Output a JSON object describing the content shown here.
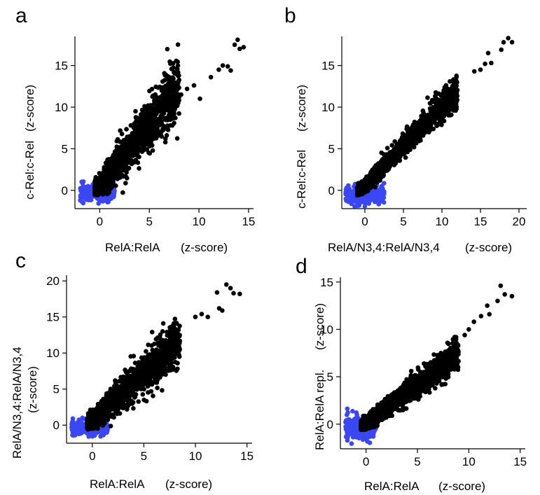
{
  "colors": {
    "background": "#ffffff",
    "high_points": "#000000",
    "low_points": "#3a47f5",
    "axis": "#000000"
  },
  "panels": [
    {
      "letter": "a",
      "xlabel": "RelA:RelA",
      "xunit": "(z-score)",
      "ylabel": "c-Rel:c-Rel",
      "yunit": "(z-score)"
    },
    {
      "letter": "b",
      "xlabel": "RelA/N3,4:RelA/N3,4",
      "xunit": "(z-score)",
      "ylabel": "c-Rel:c-Rel",
      "yunit": "(z-score)"
    },
    {
      "letter": "c",
      "xlabel": "RelA:RelA",
      "xunit": "(z-score)",
      "ylabel": "RelA/N3,4:RelA/N3,4",
      "yunit": "(z-score)"
    },
    {
      "letter": "d",
      "xlabel": "RelA:RelA",
      "xunit": "(z-score)",
      "ylabel": "RelA:RelA repl.",
      "yunit": "(z-score)"
    }
  ],
  "chart_data": [
    {
      "panel": "a",
      "type": "scatter",
      "xlabel": "RelA:RelA (z-score)",
      "ylabel": "c-Rel:c-Rel (z-score)",
      "xlim": [
        -2.5,
        15.5
      ],
      "ylim": [
        -2.2,
        18.5
      ],
      "xticks": [
        0,
        5,
        10,
        15
      ],
      "yticks": [
        0,
        5,
        10,
        15
      ],
      "grid": false,
      "series": [
        {
          "color": "#3a47f5",
          "cloud": {
            "x_range": [
              -2,
              1.5
            ],
            "center_y": -0.3,
            "y_spread": 0.9
          }
        },
        {
          "color": "#000000",
          "cloud": {
            "x_range": [
              -0.5,
              8
            ],
            "slope": 1.5,
            "intercept": 0.5,
            "spread": 2.0
          },
          "outliers": [
            [
              8.2,
              11.5
            ],
            [
              8.8,
              12.2
            ],
            [
              9.5,
              12.6
            ],
            [
              10.1,
              11.0
            ],
            [
              12.0,
              14.5
            ],
            [
              12.4,
              15.0
            ],
            [
              12.9,
              14.9
            ],
            [
              13.2,
              14.4
            ],
            [
              13.6,
              17.5
            ],
            [
              14.1,
              17.0
            ],
            [
              13.9,
              18.1
            ],
            [
              14.5,
              17.2
            ],
            [
              11.2,
              13.6
            ]
          ]
        }
      ]
    },
    {
      "panel": "b",
      "type": "scatter",
      "xlabel": "RelA/N3,4:RelA/N3,4 (z-score)",
      "ylabel": "c-Rel:c-Rel (z-score)",
      "xlim": [
        -3,
        21
      ],
      "ylim": [
        -2.2,
        18.5
      ],
      "xticks": [
        0,
        5,
        10,
        15,
        20
      ],
      "yticks": [
        0,
        5,
        10,
        15
      ],
      "grid": false,
      "series": [
        {
          "color": "#3a47f5",
          "cloud": {
            "x_range": [
              -2.5,
              2.5
            ],
            "center_y": -0.6,
            "y_spread": 0.9
          }
        },
        {
          "color": "#000000",
          "cloud": {
            "x_range": [
              -1,
              12
            ],
            "slope": 0.95,
            "intercept": 0.6,
            "spread": 1.0
          },
          "outliers": [
            [
              15.0,
              14.5
            ],
            [
              15.6,
              15.2
            ],
            [
              16.0,
              16.5
            ],
            [
              16.4,
              15.3
            ],
            [
              18.0,
              17.8
            ],
            [
              18.6,
              18.3
            ],
            [
              19.1,
              17.8
            ],
            [
              17.7,
              16.9
            ],
            [
              14.2,
              14.3
            ]
          ]
        }
      ]
    },
    {
      "panel": "c",
      "type": "scatter",
      "xlabel": "RelA:RelA (z-score)",
      "ylabel": "RelA/N3,4:RelA/N3,4 (z-score)",
      "xlim": [
        -2.5,
        15.5
      ],
      "ylim": [
        -2.5,
        20.8
      ],
      "xticks": [
        0,
        5,
        10,
        15
      ],
      "yticks": [
        0,
        5,
        10,
        15,
        20
      ],
      "grid": false,
      "series": [
        {
          "color": "#3a47f5",
          "cloud": {
            "x_range": [
              -2,
              1.5
            ],
            "center_y": -0.3,
            "y_spread": 0.9
          }
        },
        {
          "color": "#000000",
          "cloud": {
            "x_range": [
              -0.5,
              8.5
            ],
            "slope": 1.3,
            "intercept": 0.6,
            "spread": 1.8
          },
          "outliers": [
            [
              10.0,
              15.0
            ],
            [
              10.6,
              15.4
            ],
            [
              11.2,
              15.0
            ],
            [
              12.3,
              16.2
            ],
            [
              12.6,
              15.9
            ],
            [
              13.0,
              19.5
            ],
            [
              13.4,
              19.0
            ],
            [
              13.7,
              18.3
            ],
            [
              14.3,
              18.2
            ],
            [
              12.1,
              18.4
            ]
          ]
        }
      ]
    },
    {
      "panel": "d",
      "type": "scatter",
      "xlabel": "RelA:RelA (z-score)",
      "ylabel": "RelA:RelA repl. (z-score)",
      "xlim": [
        -2.5,
        15.5
      ],
      "ylim": [
        -2.6,
        15.5
      ],
      "xticks": [
        0,
        5,
        10,
        15
      ],
      "yticks": [
        0,
        5,
        10,
        15
      ],
      "grid": false,
      "series": [
        {
          "color": "#3a47f5",
          "cloud": {
            "x_range": [
              -2,
              1
            ],
            "center_y": -0.4,
            "y_spread": 1.1
          }
        },
        {
          "color": "#000000",
          "cloud": {
            "x_range": [
              -0.5,
              9
            ],
            "slope": 0.82,
            "intercept": 0.1,
            "spread": 0.9
          },
          "outliers": [
            [
              10.0,
              10.0
            ],
            [
              10.5,
              10.8
            ],
            [
              11.2,
              11.4
            ],
            [
              12.0,
              11.6
            ],
            [
              12.8,
              13.0
            ],
            [
              13.1,
              14.6
            ],
            [
              13.5,
              13.7
            ],
            [
              14.2,
              13.5
            ],
            [
              11.8,
              12.5
            ],
            [
              9.6,
              9.4
            ]
          ]
        }
      ]
    }
  ]
}
